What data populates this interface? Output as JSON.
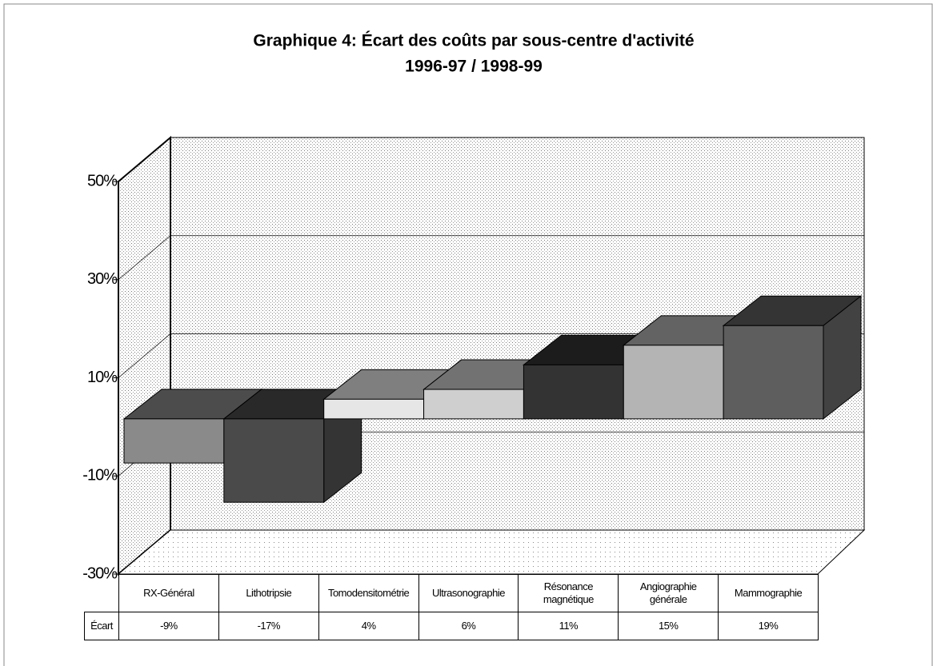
{
  "chart_data": {
    "type": "bar3d",
    "title": "Graphique 4:  Écart des coûts par sous-centre d'activité",
    "subtitle": "1996-97 / 1998-99",
    "categories": [
      "RX-Général",
      "Lithotripsie",
      "Tomodensitométrie",
      "Ultrasonographie",
      "Résonance magnétique",
      "Angiographie générale",
      "Mammographie"
    ],
    "series": [
      {
        "name": "Écart",
        "values": [
          -9,
          -17,
          4,
          6,
          11,
          15,
          19
        ],
        "value_labels": [
          "-9%",
          "-17%",
          "4%",
          "6%",
          "11%",
          "15%",
          "19%"
        ],
        "colors": [
          "#8a8a8a",
          "#4a4a4a",
          "#e6e6e6",
          "#cfcfcf",
          "#333333",
          "#b4b4b4",
          "#5e5e5e"
        ]
      }
    ],
    "ylim": [
      -30,
      50
    ],
    "yticks": [
      {
        "value": -30,
        "label": "-30%"
      },
      {
        "value": -10,
        "label": "-10%"
      },
      {
        "value": 10,
        "label": "10%"
      },
      {
        "value": 30,
        "label": "30%"
      },
      {
        "value": 50,
        "label": "50%"
      }
    ],
    "grid": true
  }
}
